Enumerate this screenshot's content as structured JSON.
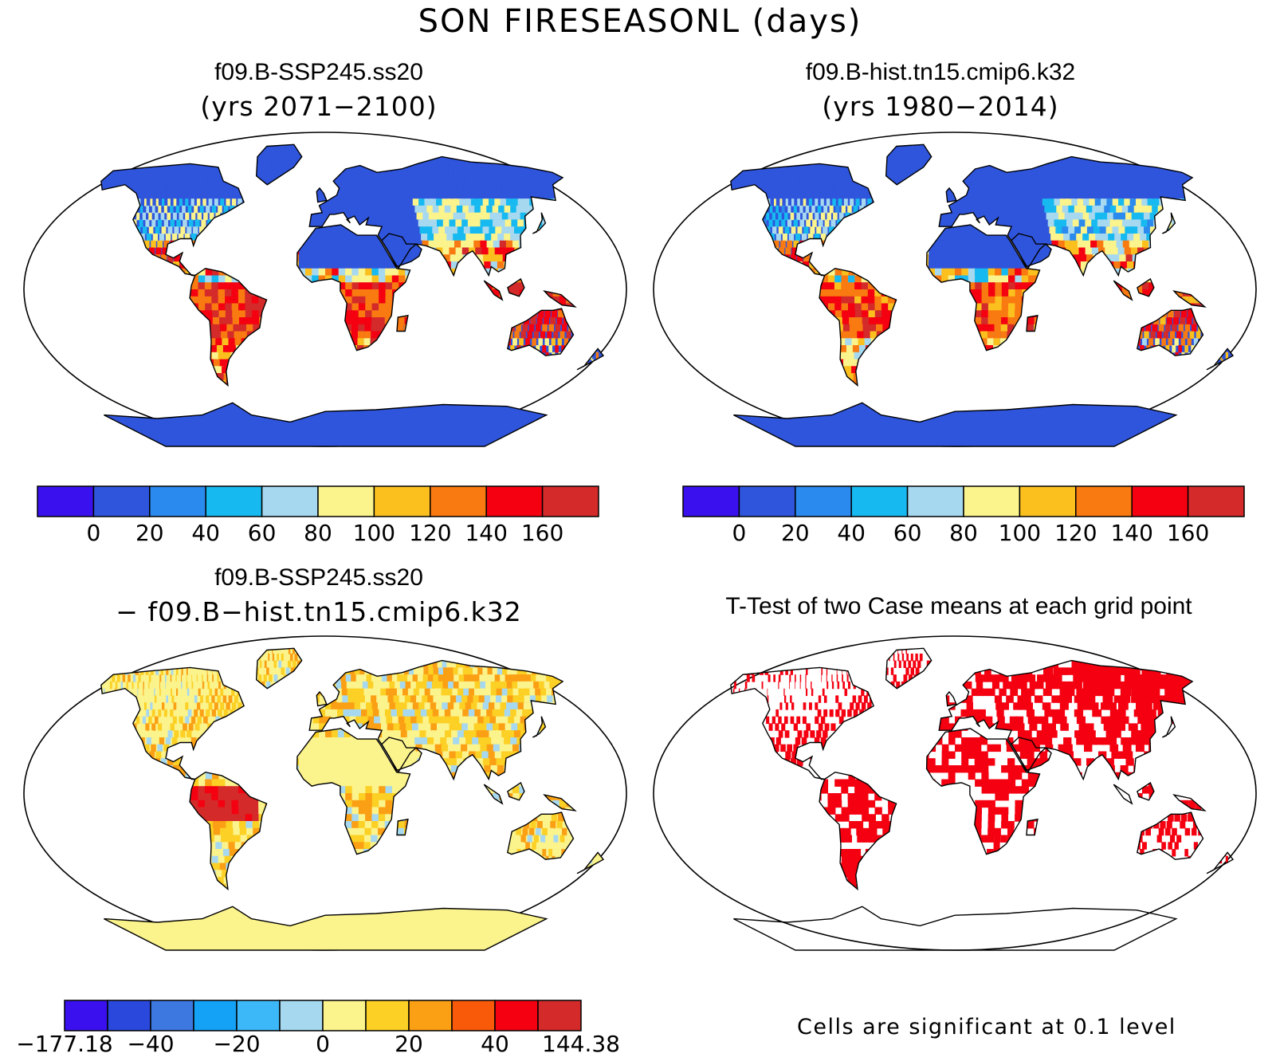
{
  "figure": {
    "title": "SON FIRESEASONL (days)"
  },
  "panels": [
    {
      "id": "ssp245",
      "title": "f09.B-SSP245.ss20",
      "subtitle": "(yrs 2071−2100)",
      "variant": "future"
    },
    {
      "id": "hist",
      "title": "f09.B-hist.tn15.cmip6.k32",
      "subtitle": "(yrs 1980−2014)",
      "variant": "hist"
    },
    {
      "id": "diff",
      "title": "f09.B-SSP245.ss20",
      "subtitle": "− f09.B−hist.tn15.cmip6.k32",
      "variant": "diff"
    },
    {
      "id": "ttest",
      "title": "T-Test of two Case means at each grid point",
      "variant": "ttest"
    }
  ],
  "colorbars": {
    "abs": {
      "colors": [
        "#3a10ee",
        "#2f55dc",
        "#2a8aee",
        "#17baf0",
        "#a6d8f0",
        "#fbf38c",
        "#fcc01e",
        "#f97a10",
        "#f40010",
        "#d42a2a"
      ],
      "labels": [
        "0",
        "20",
        "40",
        "60",
        "80",
        "100",
        "120",
        "140",
        "160"
      ]
    },
    "diff": {
      "colors": [
        "#3a10ee",
        "#2a48dc",
        "#3c78e0",
        "#14a2f6",
        "#3cb8f8",
        "#a6d8f0",
        "#fbf38c",
        "#fcd024",
        "#fba014",
        "#f95a0a",
        "#f40010",
        "#d42a2a"
      ],
      "labels": [
        "−177.18",
        "−40",
        "−20",
        "0",
        "20",
        "40",
        "144.38"
      ]
    }
  },
  "significance_note": "Cells are significant at 0.1 level"
}
